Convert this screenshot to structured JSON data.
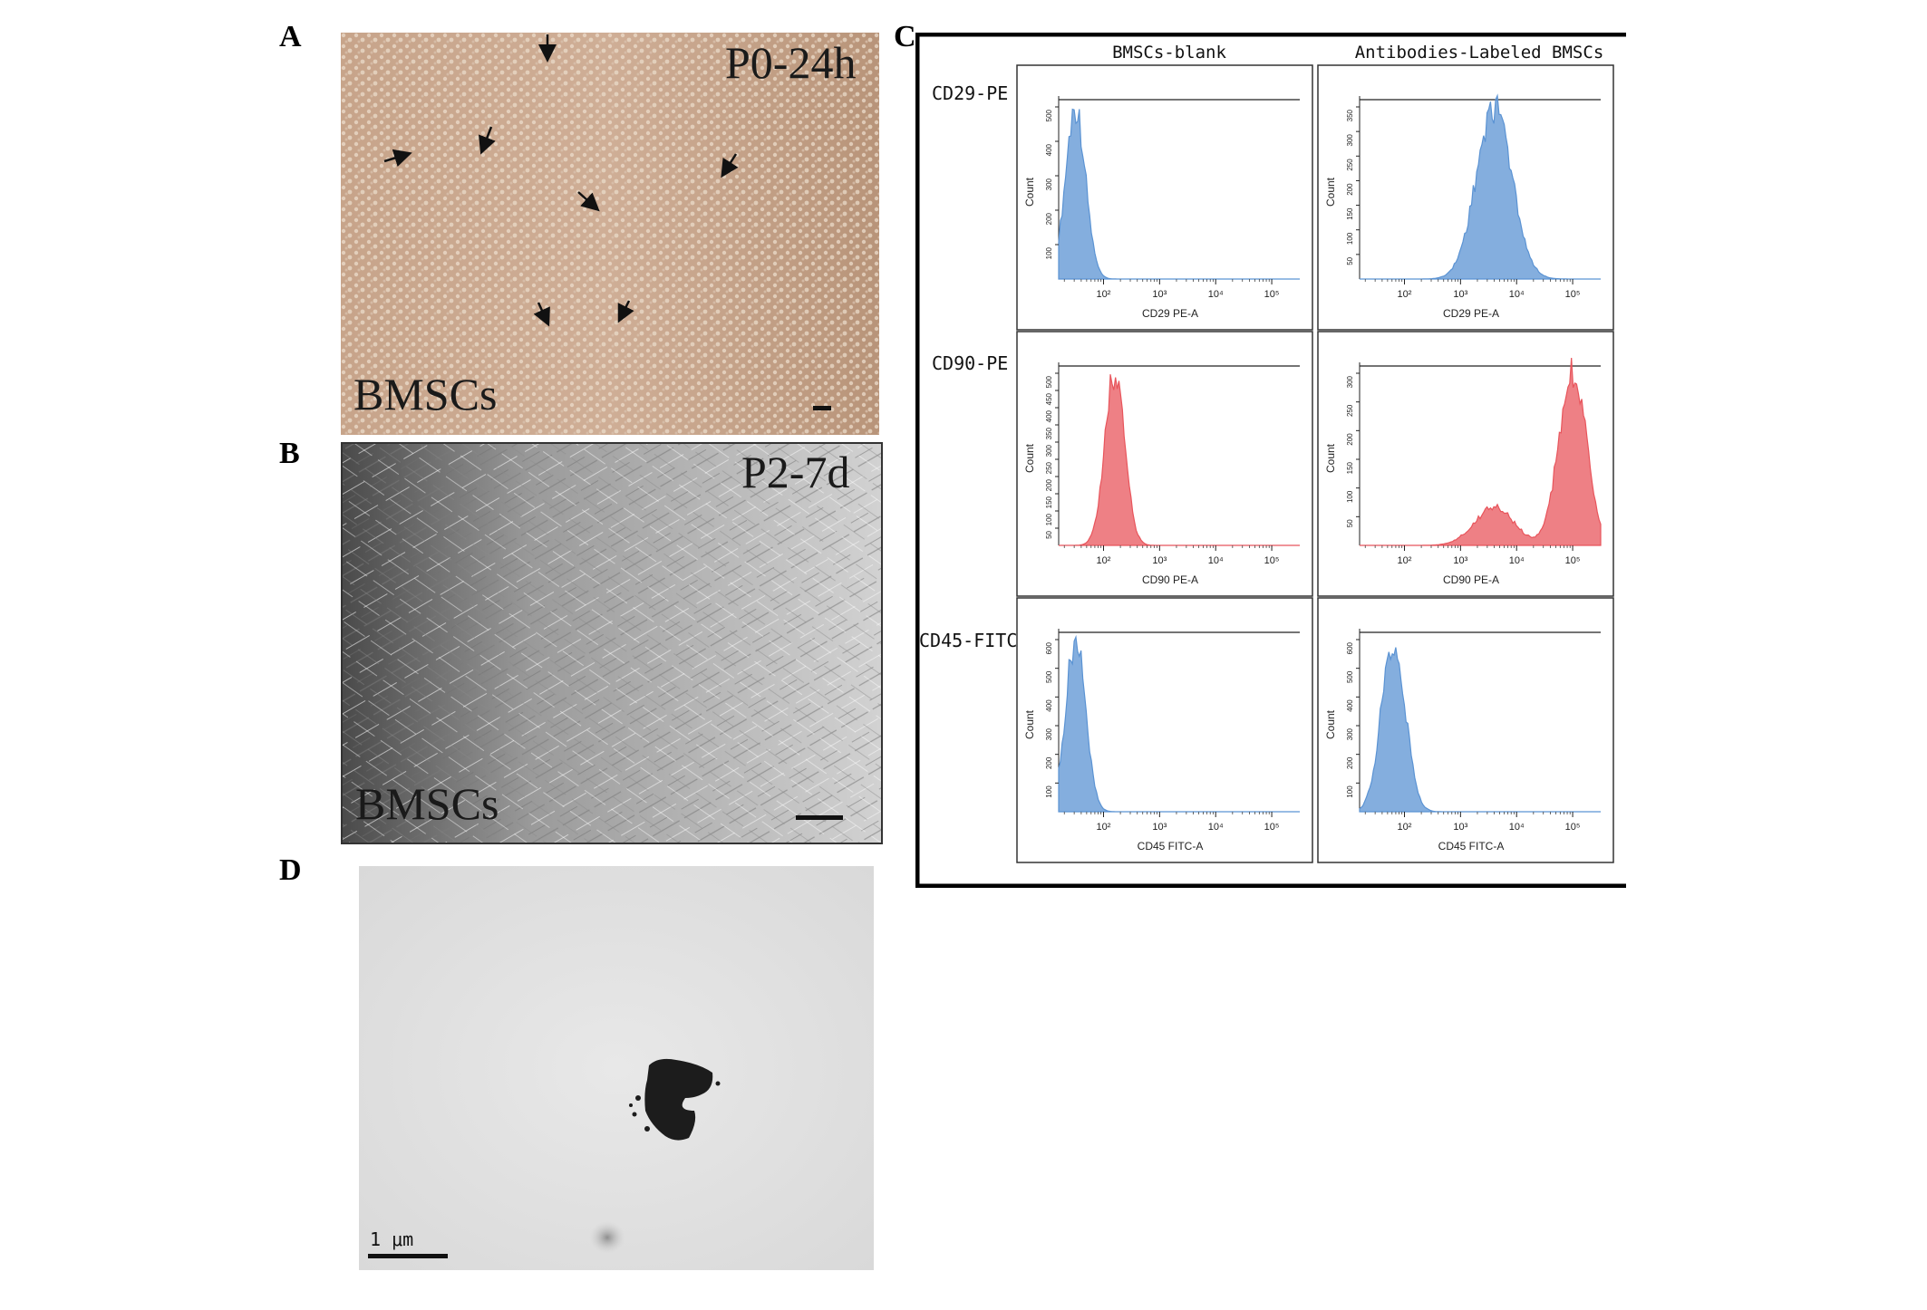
{
  "panels": {
    "a": {
      "letter": "A",
      "timepoint": "P0-24h",
      "cell_label": "BMSCs",
      "colors": {
        "background": "#c8a58c",
        "cells": "#e6d6c6",
        "arrow": "#111111"
      }
    },
    "b": {
      "letter": "B",
      "timepoint": "P2-7d",
      "cell_label": "BMSCs",
      "colors": {
        "dark": "#4a4a4a",
        "light": "#cfcfcf"
      }
    },
    "c": {
      "letter": "C",
      "col_headers": [
        "BMSCs-blank",
        "Antibodies-Labeled BMSCs"
      ],
      "row_labels": [
        "CD29-PE",
        "CD90-PE",
        "CD45-FITC"
      ],
      "y_axis_label": "Count",
      "x_tick_labels": [
        "10²",
        "10³",
        "10⁴",
        "10⁵"
      ],
      "colors": {
        "blue": "#5b93d3",
        "red": "#e8555c"
      },
      "plots": [
        {
          "row": 0,
          "col": 0,
          "xlabel": "CD29 PE-A",
          "color": "blue",
          "yticks": [
            "100",
            "200",
            "300",
            "400",
            "500"
          ],
          "peak_log": 1.5,
          "width": 0.25
        },
        {
          "row": 0,
          "col": 1,
          "xlabel": "CD29 PE-A",
          "color": "blue",
          "yticks": [
            "50",
            "100",
            "150",
            "200",
            "250",
            "300",
            "350"
          ],
          "peak_log": 3.6,
          "width": 0.45
        },
        {
          "row": 1,
          "col": 0,
          "xlabel": "CD90   PE-A",
          "color": "red",
          "yticks": [
            "50",
            "100",
            "150",
            "200",
            "250",
            "300",
            "350",
            "400",
            "450",
            "500"
          ],
          "peak_log": 2.2,
          "width": 0.25
        },
        {
          "row": 1,
          "col": 1,
          "xlabel": "CD90   PE-A",
          "color": "red",
          "yticks": [
            "50",
            "100",
            "150",
            "200",
            "250",
            "300"
          ],
          "peak_log": 5.0,
          "width": 0.35
        },
        {
          "row": 2,
          "col": 0,
          "xlabel": "CD45 FITC-A",
          "color": "blue",
          "yticks": [
            "100",
            "200",
            "300",
            "400",
            "500",
            "600"
          ],
          "peak_log": 1.5,
          "width": 0.25
        },
        {
          "row": 2,
          "col": 1,
          "xlabel": "CD45 FITC-A",
          "color": "blue",
          "yticks": [
            "100",
            "200",
            "300",
            "400",
            "500",
            "600"
          ],
          "peak_log": 1.8,
          "width": 0.3
        }
      ]
    },
    "d": {
      "letter": "D",
      "scale_label": "1 μm",
      "colors": {
        "background": "#e9e9e9",
        "particle": "#1c1c1c"
      }
    }
  }
}
